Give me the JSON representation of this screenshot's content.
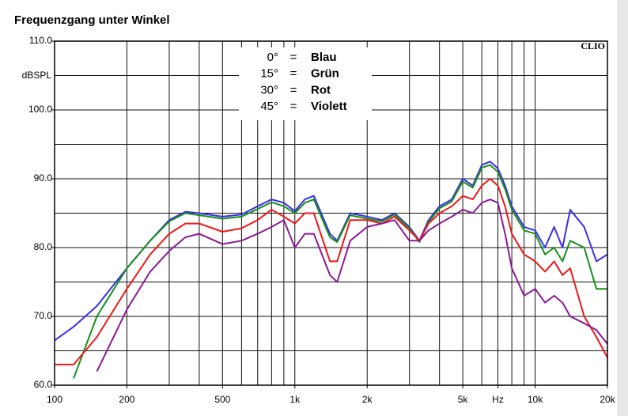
{
  "chart_data": {
    "type": "line",
    "title": "Frequenzgang unter Winkel",
    "brand": "CLIO",
    "y_label": "dBSPL",
    "xscale": "log",
    "xlim": [
      100,
      20000
    ],
    "ylim": [
      60,
      110
    ],
    "xticks": [
      100,
      200,
      500,
      {
        "value": 1000,
        "label": "1k"
      },
      {
        "value": 2000,
        "label": "2k"
      },
      {
        "value": 5000,
        "label": "5k"
      },
      {
        "value": 7000,
        "label": "Hz"
      },
      {
        "value": 10000,
        "label": "10k"
      },
      {
        "value": 20000,
        "label": "20k"
      }
    ],
    "yticks": [
      {
        "value": 60,
        "label": "60.0"
      },
      {
        "value": 70,
        "label": "70.0"
      },
      {
        "value": 80,
        "label": "80.0"
      },
      {
        "value": 90,
        "label": "90.0"
      },
      {
        "value": 100,
        "label": "100.0"
      },
      {
        "value": 110,
        "label": "110.0"
      }
    ],
    "xgrid": [
      200,
      300,
      400,
      500,
      600,
      700,
      800,
      900,
      1000,
      2000,
      3000,
      4000,
      5000,
      6000,
      7000,
      8000,
      9000,
      10000
    ],
    "ygrid": [
      65,
      70,
      75,
      80,
      85,
      90,
      95,
      100,
      105
    ],
    "legend_separator": "=",
    "x": [
      100,
      120,
      150,
      200,
      250,
      300,
      350,
      400,
      500,
      600,
      700,
      800,
      900,
      1000,
      1100,
      1200,
      1400,
      1500,
      1700,
      2000,
      2300,
      2600,
      3000,
      3300,
      3600,
      4000,
      4500,
      5000,
      5500,
      6000,
      6500,
      7000,
      7500,
      8000,
      9000,
      10000,
      11000,
      12000,
      13000,
      14000,
      16000,
      18000,
      20000
    ],
    "series": [
      {
        "name": "0°",
        "color_name": "Blau",
        "color": "#3b2ee6",
        "values": [
          66.5,
          68.5,
          71.5,
          77,
          81,
          84,
          85.2,
          85,
          84.5,
          84.8,
          86,
          87,
          86.5,
          85.3,
          87,
          87.5,
          82,
          81,
          85,
          84.5,
          84,
          85,
          83,
          81,
          84,
          86,
          87,
          90,
          89,
          92,
          92.5,
          91.5,
          89,
          86,
          83,
          82.5,
          80,
          83,
          80,
          85.5,
          83,
          78,
          79
        ]
      },
      {
        "name": "15°",
        "color_name": "Grün",
        "color": "#16901a",
        "values": [
          null,
          61,
          70,
          77,
          81,
          83.8,
          85,
          84.7,
          84.2,
          84.5,
          85.6,
          86.6,
          86,
          85,
          86.5,
          87,
          81.5,
          80.8,
          84.7,
          84.2,
          83.8,
          84.8,
          82.8,
          80.8,
          83.7,
          85.7,
          86.7,
          89.6,
          88.7,
          91.6,
          92,
          91,
          88.5,
          85.5,
          82.5,
          82,
          79,
          80,
          78,
          81,
          80,
          74,
          74
        ]
      },
      {
        "name": "30°",
        "color_name": "Rot",
        "color": "#f01818",
        "values": [
          63,
          63,
          67,
          74,
          79,
          82,
          83.5,
          83.5,
          82.3,
          82.8,
          84,
          85.5,
          84.5,
          83.5,
          85,
          85,
          78,
          78,
          84,
          84,
          83.5,
          84.5,
          82.5,
          81,
          83.5,
          85,
          86,
          87.5,
          87,
          89,
          90,
          89,
          86,
          82,
          79,
          78,
          76.5,
          78,
          76,
          77,
          70,
          67,
          64
        ]
      },
      {
        "name": "45°",
        "color_name": "Violett",
        "color": "#8a1a96",
        "values": [
          null,
          null,
          62,
          71,
          76.5,
          79.5,
          81.5,
          82,
          80.5,
          81,
          82,
          83,
          84,
          80,
          82,
          82,
          76,
          75,
          81,
          83,
          83.5,
          84,
          81,
          81,
          82.5,
          83.5,
          84.5,
          85.5,
          85,
          86.5,
          87,
          86.5,
          82,
          77,
          73,
          74,
          72,
          73,
          72,
          70,
          69,
          68,
          66
        ]
      }
    ]
  }
}
